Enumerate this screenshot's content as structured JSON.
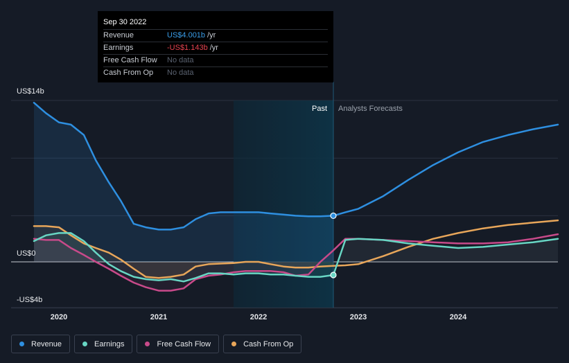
{
  "tooltip": {
    "date": "Sep 30 2022",
    "rows": [
      {
        "label": "Revenue",
        "value": "US$4.001b",
        "unit": "/yr",
        "color": "#3a9de8"
      },
      {
        "label": "Earnings",
        "value": "-US$1.143b",
        "unit": "/yr",
        "color": "#e8434f"
      },
      {
        "label": "Free Cash Flow",
        "value": "No data",
        "unit": "",
        "color": "#5a6270"
      },
      {
        "label": "Cash From Op",
        "value": "No data",
        "unit": "",
        "color": "#5a6270"
      }
    ]
  },
  "legend": [
    {
      "label": "Revenue",
      "color": "#2e8fe0"
    },
    {
      "label": "Earnings",
      "color": "#68d6c4"
    },
    {
      "label": "Free Cash Flow",
      "color": "#c84a8a"
    },
    {
      "label": "Cash From Op",
      "color": "#e8a65a"
    }
  ],
  "chart_data": {
    "type": "line",
    "title": "",
    "xlabel": "",
    "ylabel": "",
    "unit": "US$b",
    "ylim": [
      -4,
      14
    ],
    "xlim": [
      2019.75,
      2025.0
    ],
    "divider_x": 2022.75,
    "shaded_range": [
      2021.75,
      2022.75
    ],
    "past_label": "Past",
    "forecast_label": "Analysts Forecasts",
    "y_ticks": [
      {
        "value": 14,
        "label": "US$14b"
      },
      {
        "value": 0,
        "label": "US$0"
      },
      {
        "value": -4,
        "label": "-US$4b"
      }
    ],
    "x_ticks": [
      {
        "value": 2020,
        "label": "2020"
      },
      {
        "value": 2021,
        "label": "2021"
      },
      {
        "value": 2022,
        "label": "2022"
      },
      {
        "value": 2023,
        "label": "2023"
      },
      {
        "value": 2024,
        "label": "2024"
      }
    ],
    "marker_points": [
      {
        "series": "Revenue",
        "x": 2022.75,
        "y": 4.0
      },
      {
        "series": "Earnings",
        "x": 2022.75,
        "y": -1.14
      }
    ],
    "series": [
      {
        "name": "Revenue",
        "color": "#2e8fe0",
        "points": [
          [
            2019.75,
            13.8
          ],
          [
            2019.87,
            12.9
          ],
          [
            2020.0,
            12.1
          ],
          [
            2020.12,
            11.9
          ],
          [
            2020.25,
            11.0
          ],
          [
            2020.37,
            8.8
          ],
          [
            2020.5,
            6.9
          ],
          [
            2020.62,
            5.3
          ],
          [
            2020.75,
            3.3
          ],
          [
            2020.87,
            3.0
          ],
          [
            2021.0,
            2.8
          ],
          [
            2021.12,
            2.8
          ],
          [
            2021.25,
            3.0
          ],
          [
            2021.37,
            3.7
          ],
          [
            2021.5,
            4.2
          ],
          [
            2021.62,
            4.3
          ],
          [
            2021.75,
            4.3
          ],
          [
            2021.87,
            4.3
          ],
          [
            2022.0,
            4.3
          ],
          [
            2022.12,
            4.2
          ],
          [
            2022.25,
            4.1
          ],
          [
            2022.37,
            4.0
          ],
          [
            2022.5,
            3.95
          ],
          [
            2022.62,
            3.95
          ],
          [
            2022.75,
            4.0
          ],
          [
            2022.87,
            4.3
          ],
          [
            2023.0,
            4.6
          ],
          [
            2023.25,
            5.7
          ],
          [
            2023.5,
            7.1
          ],
          [
            2023.75,
            8.4
          ],
          [
            2024.0,
            9.5
          ],
          [
            2024.25,
            10.4
          ],
          [
            2024.5,
            11.0
          ],
          [
            2024.75,
            11.5
          ],
          [
            2025.0,
            11.9
          ]
        ]
      },
      {
        "name": "Earnings",
        "color": "#68d6c4",
        "points": [
          [
            2019.75,
            1.8
          ],
          [
            2019.87,
            2.3
          ],
          [
            2020.0,
            2.5
          ],
          [
            2020.12,
            2.5
          ],
          [
            2020.25,
            1.8
          ],
          [
            2020.37,
            0.8
          ],
          [
            2020.5,
            -0.2
          ],
          [
            2020.62,
            -0.8
          ],
          [
            2020.75,
            -1.3
          ],
          [
            2020.87,
            -1.5
          ],
          [
            2021.0,
            -1.6
          ],
          [
            2021.12,
            -1.5
          ],
          [
            2021.25,
            -1.7
          ],
          [
            2021.37,
            -1.4
          ],
          [
            2021.5,
            -1.0
          ],
          [
            2021.62,
            -1.0
          ],
          [
            2021.75,
            -1.1
          ],
          [
            2021.87,
            -1.0
          ],
          [
            2022.0,
            -1.0
          ],
          [
            2022.12,
            -1.1
          ],
          [
            2022.25,
            -1.1
          ],
          [
            2022.37,
            -1.2
          ],
          [
            2022.5,
            -1.3
          ],
          [
            2022.62,
            -1.3
          ],
          [
            2022.75,
            -1.14
          ],
          [
            2022.87,
            1.9
          ],
          [
            2023.0,
            2.0
          ],
          [
            2023.25,
            1.9
          ],
          [
            2023.5,
            1.6
          ],
          [
            2023.75,
            1.4
          ],
          [
            2024.0,
            1.2
          ],
          [
            2024.25,
            1.3
          ],
          [
            2024.5,
            1.5
          ],
          [
            2024.75,
            1.7
          ],
          [
            2025.0,
            2.0
          ]
        ]
      },
      {
        "name": "Free Cash Flow",
        "color": "#c84a8a",
        "points": [
          [
            2019.75,
            2.0
          ],
          [
            2019.87,
            1.9
          ],
          [
            2020.0,
            1.9
          ],
          [
            2020.12,
            1.2
          ],
          [
            2020.25,
            0.6
          ],
          [
            2020.37,
            0.0
          ],
          [
            2020.5,
            -0.6
          ],
          [
            2020.62,
            -1.2
          ],
          [
            2020.75,
            -1.8
          ],
          [
            2020.87,
            -2.2
          ],
          [
            2021.0,
            -2.5
          ],
          [
            2021.12,
            -2.5
          ],
          [
            2021.25,
            -2.3
          ],
          [
            2021.37,
            -1.5
          ],
          [
            2021.5,
            -1.2
          ],
          [
            2021.62,
            -1.1
          ],
          [
            2021.75,
            -0.9
          ],
          [
            2021.87,
            -0.8
          ],
          [
            2022.0,
            -0.8
          ],
          [
            2022.12,
            -0.8
          ],
          [
            2022.25,
            -0.9
          ],
          [
            2022.37,
            -1.2
          ],
          [
            2022.5,
            -1.1
          ],
          [
            2022.62,
            0.0
          ],
          [
            2022.75,
            1.0
          ],
          [
            2022.87,
            2.0
          ],
          [
            2023.0,
            2.0
          ],
          [
            2023.25,
            1.9
          ],
          [
            2023.5,
            1.8
          ],
          [
            2023.75,
            1.7
          ],
          [
            2024.0,
            1.6
          ],
          [
            2024.25,
            1.6
          ],
          [
            2024.5,
            1.7
          ],
          [
            2024.75,
            2.0
          ],
          [
            2025.0,
            2.4
          ]
        ]
      },
      {
        "name": "Cash From Op",
        "color": "#e8a65a",
        "points": [
          [
            2019.75,
            3.1
          ],
          [
            2019.87,
            3.1
          ],
          [
            2020.0,
            3.0
          ],
          [
            2020.12,
            2.3
          ],
          [
            2020.25,
            1.6
          ],
          [
            2020.37,
            1.2
          ],
          [
            2020.5,
            0.8
          ],
          [
            2020.62,
            0.2
          ],
          [
            2020.75,
            -0.6
          ],
          [
            2020.87,
            -1.3
          ],
          [
            2021.0,
            -1.4
          ],
          [
            2021.12,
            -1.3
          ],
          [
            2021.25,
            -1.1
          ],
          [
            2021.37,
            -0.4
          ],
          [
            2021.5,
            -0.2
          ],
          [
            2021.62,
            -0.15
          ],
          [
            2021.75,
            -0.1
          ],
          [
            2021.87,
            0.0
          ],
          [
            2022.0,
            0.0
          ],
          [
            2022.12,
            -0.2
          ],
          [
            2022.25,
            -0.4
          ],
          [
            2022.37,
            -0.5
          ],
          [
            2022.5,
            -0.5
          ],
          [
            2022.62,
            -0.4
          ],
          [
            2022.75,
            -0.35
          ],
          [
            2022.87,
            -0.3
          ],
          [
            2023.0,
            -0.2
          ],
          [
            2023.25,
            0.5
          ],
          [
            2023.5,
            1.3
          ],
          [
            2023.75,
            2.0
          ],
          [
            2024.0,
            2.5
          ],
          [
            2024.25,
            2.9
          ],
          [
            2024.5,
            3.2
          ],
          [
            2024.75,
            3.4
          ],
          [
            2025.0,
            3.6
          ]
        ]
      }
    ]
  }
}
